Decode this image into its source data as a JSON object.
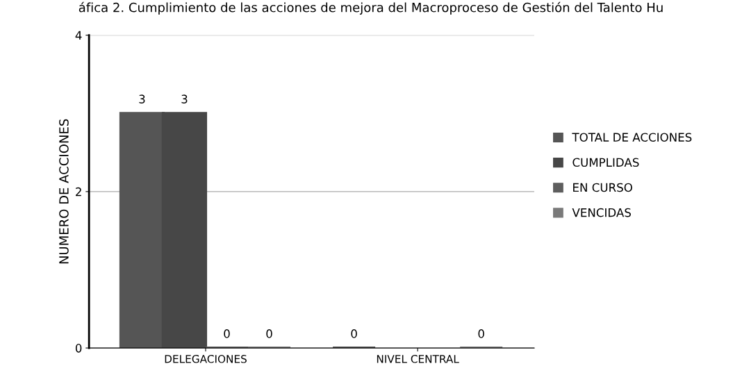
{
  "chart_data": {
    "type": "bar",
    "title": "áfica 2. Cumplimiento de las acciones de mejora del Macroproceso de Gestión del Talento Hu",
    "ylabel": "NUMERO DE ACCIONES",
    "categories": [
      "DELEGACIONES",
      "NIVEL CENTRAL"
    ],
    "series": [
      {
        "name": "TOTAL DE ACCIONES",
        "color": "#555555",
        "values": [
          3,
          0
        ]
      },
      {
        "name": "CUMPLIDAS",
        "color": "#474747",
        "values": [
          3,
          null
        ]
      },
      {
        "name": "EN CURSO",
        "color": "#5e5e5e",
        "values": [
          0,
          null
        ]
      },
      {
        "name": "VENCIDAS",
        "color": "#7a7a7a",
        "values": [
          0,
          0
        ]
      }
    ],
    "ylim": [
      0,
      4
    ],
    "yticks": [
      0,
      2,
      4
    ],
    "grid": "y",
    "legend": "right",
    "data_labels": true
  }
}
